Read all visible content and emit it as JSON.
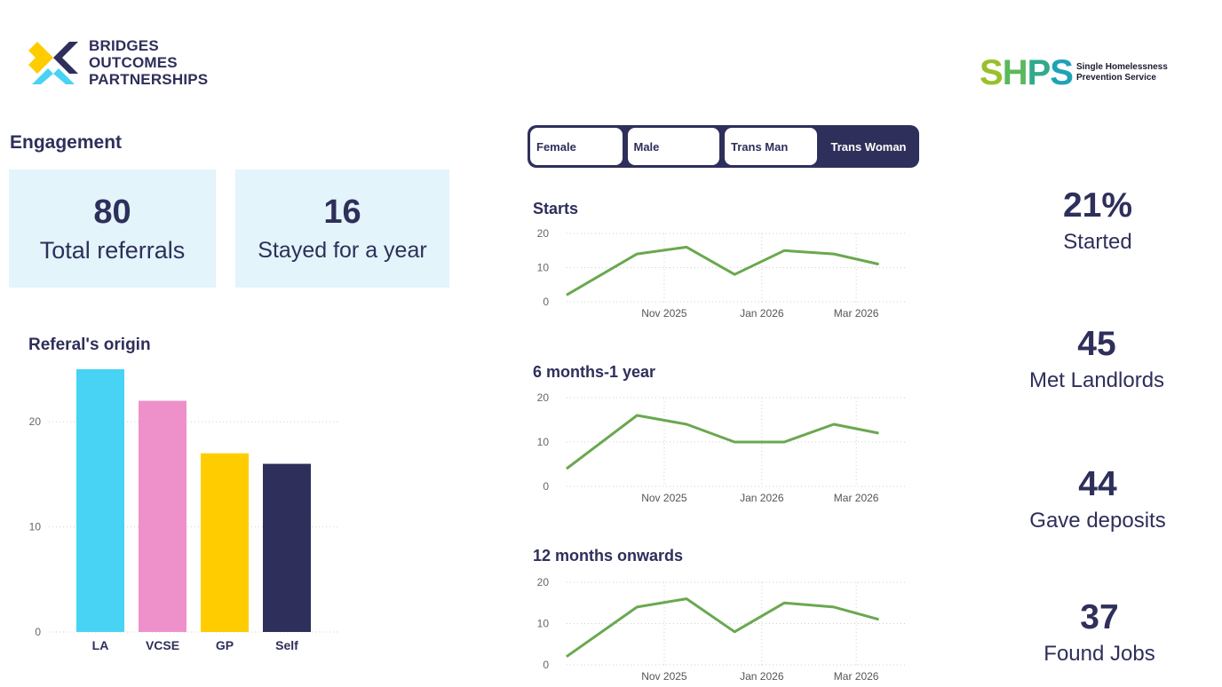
{
  "logos": {
    "bridges": [
      "BRIDGES",
      "OUTCOMES",
      "PARTNERSHIPS"
    ],
    "shps_mark": [
      "S",
      "H",
      "P",
      "S"
    ],
    "shps_sub": [
      "Single Homelessness",
      "Prevention Service"
    ]
  },
  "engagement": {
    "title": "Engagement",
    "cards": [
      {
        "value": "80",
        "label": "Total referrals"
      },
      {
        "value": "16",
        "label": "Stayed for a year"
      }
    ]
  },
  "slicer": {
    "options": [
      "Female",
      "Male",
      "Trans Man",
      "Trans Woman"
    ],
    "selected": "Trans Woman"
  },
  "kpis": [
    {
      "value": "21%",
      "label": "Started"
    },
    {
      "value": "45",
      "label": "Met Landlords"
    },
    {
      "value": "44",
      "label": "Gave deposits"
    },
    {
      "value": "37",
      "label": "Found Jobs"
    }
  ],
  "colors": {
    "navy": "#2e2f5a",
    "card_bg": "#e3f4fb",
    "line": "#6aa84f",
    "bar_la": "#48d3f5",
    "bar_vcse": "#ee91cb",
    "bar_gp": "#ffcc00",
    "bar_self": "#2e2f5a"
  },
  "chart_data": [
    {
      "type": "bar",
      "title": "Referal's origin",
      "categories": [
        "LA",
        "VCSE",
        "GP",
        "Self"
      ],
      "values": [
        25,
        22,
        17,
        16
      ],
      "yticks": [
        0,
        10,
        20
      ],
      "ylim": [
        0,
        25
      ],
      "grid": true,
      "xlabel": "",
      "ylabel": ""
    },
    {
      "type": "line",
      "title": "Starts",
      "x": [
        "2025-09-01",
        "2025-10-15",
        "2025-11-15",
        "2025-12-15",
        "2026-01-15",
        "2026-02-15",
        "2026-03-15"
      ],
      "values": [
        2,
        14,
        16,
        8,
        15,
        14,
        11
      ],
      "xticks": [
        "Nov 2025",
        "Jan 2026",
        "Mar 2026"
      ],
      "yticks": [
        0,
        10,
        20
      ],
      "ylim": [
        0,
        20
      ],
      "grid": true
    },
    {
      "type": "line",
      "title": "6 months-1 year",
      "x": [
        "2025-09-01",
        "2025-10-15",
        "2025-11-15",
        "2025-12-15",
        "2026-01-15",
        "2026-02-15",
        "2026-03-15"
      ],
      "values": [
        4,
        16,
        14,
        10,
        10,
        14,
        12
      ],
      "xticks": [
        "Nov 2025",
        "Jan 2026",
        "Mar 2026"
      ],
      "yticks": [
        0,
        10,
        20
      ],
      "ylim": [
        0,
        20
      ],
      "grid": true
    },
    {
      "type": "line",
      "title": "12 months onwards",
      "x": [
        "2025-09-01",
        "2025-10-15",
        "2025-11-15",
        "2025-12-15",
        "2026-01-15",
        "2026-02-15",
        "2026-03-15"
      ],
      "values": [
        2,
        14,
        16,
        8,
        15,
        14,
        11
      ],
      "xticks": [
        "Nov 2025",
        "Jan 2026",
        "Mar 2026"
      ],
      "yticks": [
        0,
        10,
        20
      ],
      "ylim": [
        0,
        20
      ],
      "grid": true
    }
  ]
}
